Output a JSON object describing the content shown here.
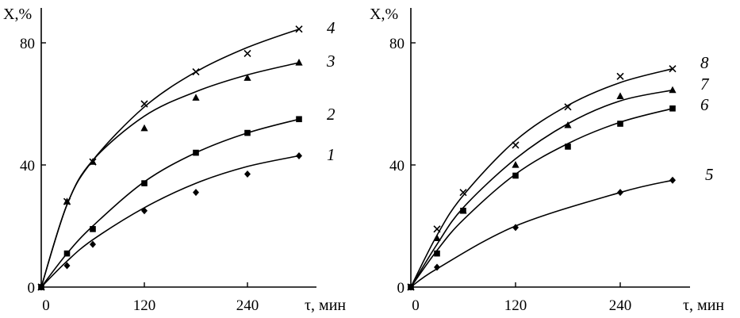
{
  "chart_data": [
    {
      "type": "scatter",
      "xlabel": "τ, мин",
      "ylabel": "X,%",
      "xlim": [
        0,
        300
      ],
      "ylim": [
        0,
        92
      ],
      "xticks": [
        "0",
        "120",
        "240"
      ],
      "yticks": [
        "0",
        "40",
        "80"
      ],
      "grid": false,
      "series": [
        {
          "name": "1",
          "marker": "diamond",
          "x": [
            0,
            30,
            60,
            120,
            180,
            240,
            300
          ],
          "y": [
            0,
            7,
            14,
            25,
            31,
            37,
            43
          ],
          "fit": [
            0,
            8.5,
            15.5,
            26,
            34,
            39.5,
            43
          ]
        },
        {
          "name": "2",
          "marker": "square",
          "x": [
            0,
            30,
            60,
            120,
            180,
            240,
            300
          ],
          "y": [
            0,
            11,
            19,
            34,
            44,
            50.5,
            55
          ],
          "fit": [
            0,
            11,
            20,
            34.5,
            44,
            50.5,
            55
          ]
        },
        {
          "name": "3",
          "marker": "triangle",
          "x": [
            0,
            30,
            60,
            120,
            180,
            240,
            300
          ],
          "y": [
            0,
            28,
            41,
            52,
            62,
            68.5,
            73.5
          ],
          "fit": [
            0,
            27,
            41.5,
            56,
            64,
            69.5,
            73.5
          ]
        },
        {
          "name": "4",
          "marker": "cross",
          "x": [
            0,
            30,
            60,
            120,
            180,
            240,
            300
          ],
          "y": [
            0,
            28,
            41,
            60,
            70.5,
            76.5,
            84.5
          ],
          "fit": [
            0,
            27,
            41.5,
            59,
            70.5,
            78.5,
            84.5
          ]
        }
      ]
    },
    {
      "type": "scatter",
      "xlabel": "τ, мин",
      "ylabel": "X,%",
      "xlim": [
        0,
        300
      ],
      "ylim": [
        0,
        92
      ],
      "xticks": [
        "0",
        "120",
        "240"
      ],
      "yticks": [
        "0",
        "40",
        "80"
      ],
      "grid": false,
      "series": [
        {
          "name": "5",
          "marker": "diamond",
          "x": [
            0,
            30,
            120,
            240,
            300
          ],
          "y": [
            0,
            6.5,
            19.5,
            31,
            35
          ],
          "fit": [
            0,
            6,
            20,
            31,
            35
          ]
        },
        {
          "name": "6",
          "marker": "square",
          "x": [
            0,
            30,
            60,
            120,
            180,
            240,
            300
          ],
          "y": [
            0,
            11,
            25,
            36.5,
            46,
            53.5,
            58.5
          ],
          "fit": [
            0,
            12,
            22,
            37,
            47,
            54,
            58.5
          ]
        },
        {
          "name": "7",
          "marker": "triangle",
          "x": [
            0,
            30,
            60,
            120,
            180,
            240,
            300
          ],
          "y": [
            0,
            16,
            25,
            40,
            53,
            62.5,
            64.5
          ],
          "fit": [
            0,
            14,
            26,
            42,
            53.5,
            61,
            64.5
          ]
        },
        {
          "name": "8",
          "marker": "cross",
          "x": [
            0,
            30,
            60,
            120,
            180,
            240,
            300
          ],
          "y": [
            0,
            19,
            31,
            46.5,
            59,
            69,
            71.5
          ],
          "fit": [
            0,
            17,
            30,
            48,
            59.5,
            67,
            71.5
          ]
        }
      ]
    }
  ]
}
